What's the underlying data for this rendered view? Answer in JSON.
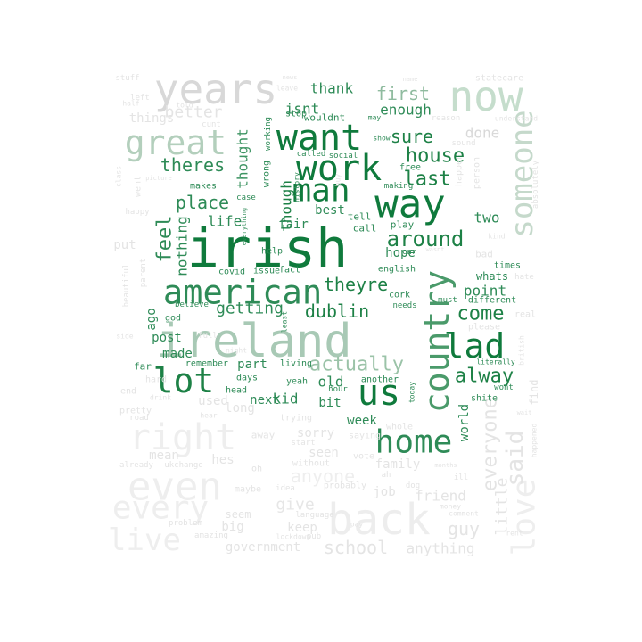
{
  "words": [
    {
      "text": "irish",
      "color": "#0f7a3c"
    },
    {
      "text": "ireland",
      "color": "#a8c9b5"
    },
    {
      "text": "american",
      "color": "#2e8b57"
    },
    {
      "text": "years",
      "color": "#d8d8d8"
    },
    {
      "text": "now",
      "color": "#c5ddcc"
    },
    {
      "text": "want",
      "color": "#0f7a3c"
    },
    {
      "text": "work",
      "color": "#0f7a3c"
    },
    {
      "text": "way",
      "color": "#0f7a3c"
    },
    {
      "text": "man",
      "color": "#0f7a3c"
    },
    {
      "text": "great",
      "color": "#b3cfbc"
    },
    {
      "text": "lot",
      "color": "#1d8146"
    },
    {
      "text": "us",
      "color": "#0f7a3c"
    },
    {
      "text": "lad",
      "color": "#0f7a3c"
    },
    {
      "text": "home",
      "color": "#2e8b57"
    },
    {
      "text": "country",
      "color": "#4a9a6a"
    },
    {
      "text": "someone",
      "color": "#c5d9cb"
    },
    {
      "text": "back",
      "color": "#ededed"
    },
    {
      "text": "even",
      "color": "#eeeeee"
    },
    {
      "text": "right",
      "color": "#eeeeee"
    },
    {
      "text": "every",
      "color": "#eeeeee"
    },
    {
      "text": "live",
      "color": "#eeeeee"
    },
    {
      "text": "love",
      "color": "#eeeeee"
    },
    {
      "text": "said",
      "color": "#e4e4e4"
    },
    {
      "text": "dublin",
      "color": "#1d8146"
    },
    {
      "text": "actually",
      "color": "#9bc3a8"
    },
    {
      "text": "around",
      "color": "#1d8146"
    },
    {
      "text": "place",
      "color": "#2e8b57"
    },
    {
      "text": "feel",
      "color": "#2e8b57"
    },
    {
      "text": "theres",
      "color": "#2e8b57"
    },
    {
      "text": "house",
      "color": "#1d8146"
    },
    {
      "text": "last",
      "color": "#1d8146"
    },
    {
      "text": "sure",
      "color": "#1d8146"
    },
    {
      "text": "first",
      "color": "#8fbb9f"
    },
    {
      "text": "better",
      "color": "#e4e4e4"
    },
    {
      "text": "getting",
      "color": "#2e8b57"
    },
    {
      "text": "theyre",
      "color": "#1d8146"
    },
    {
      "text": "come",
      "color": "#1d8146"
    },
    {
      "text": "alway",
      "color": "#1d8146"
    },
    {
      "text": "everyone",
      "color": "#e4e4e4"
    },
    {
      "text": "anyone",
      "color": "#eeeeee"
    },
    {
      "text": "school",
      "color": "#e4e4e4"
    },
    {
      "text": "give",
      "color": "#e6e6e6"
    },
    {
      "text": "guy",
      "color": "#e4e4e4"
    },
    {
      "text": "little",
      "color": "#e4e4e4"
    },
    {
      "text": "nothing",
      "color": "#2e8b57"
    },
    {
      "text": "thought",
      "color": "#3d9462"
    },
    {
      "text": "life",
      "color": "#2e8b57"
    },
    {
      "text": "though",
      "color": "#1d8146"
    },
    {
      "text": "enough",
      "color": "#2e8b57"
    },
    {
      "text": "done",
      "color": "#d9d9d9"
    },
    {
      "text": "isnt",
      "color": "#2e8b57"
    },
    {
      "text": "thank",
      "color": "#2e8b57"
    },
    {
      "text": "two",
      "color": "#2e8b57"
    },
    {
      "text": "point",
      "color": "#2e8b57"
    },
    {
      "text": "post",
      "color": "#2e8b57"
    },
    {
      "text": "made",
      "color": "#2e8b57"
    },
    {
      "text": "part",
      "color": "#2e8b57"
    },
    {
      "text": "next",
      "color": "#2e8b57"
    },
    {
      "text": "kid",
      "color": "#2e8b57"
    },
    {
      "text": "old",
      "color": "#2e8b57"
    },
    {
      "text": "week",
      "color": "#2e8b57"
    },
    {
      "text": "bit",
      "color": "#2e8b57"
    },
    {
      "text": "family",
      "color": "#e4e4e4"
    },
    {
      "text": "friend",
      "color": "#e4e4e4"
    },
    {
      "text": "sorry",
      "color": "#e4e4e4"
    },
    {
      "text": "used",
      "color": "#e4e4e4"
    },
    {
      "text": "long",
      "color": "#e4e4e4"
    },
    {
      "text": "world",
      "color": "#2e8b57"
    },
    {
      "text": "put",
      "color": "#e4e4e4"
    },
    {
      "text": "things",
      "color": "#e4e4e4"
    },
    {
      "text": "fair",
      "color": "#2e8b57"
    },
    {
      "text": "best",
      "color": "#2e8b57"
    },
    {
      "text": "ago",
      "color": "#2e8b57"
    },
    {
      "text": "anything",
      "color": "#e4e4e4"
    },
    {
      "text": "government",
      "color": "#e4e4e4"
    },
    {
      "text": "keep",
      "color": "#e4e4e4"
    },
    {
      "text": "seen",
      "color": "#e4e4e4"
    },
    {
      "text": "hes",
      "color": "#e4e4e4"
    },
    {
      "text": "mean",
      "color": "#e4e4e4"
    },
    {
      "text": "job",
      "color": "#e4e4e4"
    },
    {
      "text": "big",
      "color": "#e4e4e4"
    },
    {
      "text": "whats",
      "color": "#2e8b57"
    },
    {
      "text": "hope",
      "color": "#2e8b57"
    },
    {
      "text": "stuff",
      "color": "#e4e4e4"
    },
    {
      "text": "left",
      "color": "#e4e4e4"
    },
    {
      "text": "half",
      "color": "#e4e4e4"
    },
    {
      "text": "told",
      "color": "#e4e4e4"
    },
    {
      "text": "cunt",
      "color": "#e4e4e4"
    },
    {
      "text": "news",
      "color": "#e4e4e4"
    },
    {
      "text": "leave",
      "color": "#e4e4e4"
    },
    {
      "text": "name",
      "color": "#e4e4e4"
    },
    {
      "text": "statecare",
      "color": "#e4e4e4"
    },
    {
      "text": "wasnt",
      "color": "#e4e4e4"
    },
    {
      "text": "reason",
      "color": "#e4e4e4"
    },
    {
      "text": "understand",
      "color": "#e4e4e4"
    },
    {
      "text": "stop",
      "color": "#2e8b57"
    },
    {
      "text": "wouldnt",
      "color": "#2e8b57"
    },
    {
      "text": "may",
      "color": "#2e8b57"
    },
    {
      "text": "show",
      "color": "#2e8b57"
    },
    {
      "text": "sound",
      "color": "#e4e4e4"
    },
    {
      "text": "working",
      "color": "#2e8b57"
    },
    {
      "text": "called",
      "color": "#2e8b57"
    },
    {
      "text": "social",
      "color": "#2e8b57"
    },
    {
      "text": "free",
      "color": "#2e8b57"
    },
    {
      "text": "happen",
      "color": "#e4e4e4"
    },
    {
      "text": "person",
      "color": "#e4e4e4"
    },
    {
      "text": "absolutely",
      "color": "#e4e4e4"
    },
    {
      "text": "class",
      "color": "#e4e4e4"
    },
    {
      "text": "picture",
      "color": "#e4e4e4"
    },
    {
      "text": "went",
      "color": "#e4e4e4"
    },
    {
      "text": "makes",
      "color": "#2e8b57"
    },
    {
      "text": "case",
      "color": "#2e8b57"
    },
    {
      "text": "wrong",
      "color": "#2e8b57"
    },
    {
      "text": "history",
      "color": "#2e8b57"
    },
    {
      "text": "making",
      "color": "#2e8b57"
    },
    {
      "text": "happy",
      "color": "#e4e4e4"
    },
    {
      "text": "everything",
      "color": "#2e8b57"
    },
    {
      "text": "buy",
      "color": "#e4e4e4"
    },
    {
      "text": "tell",
      "color": "#2e8b57"
    },
    {
      "text": "call",
      "color": "#2e8b57"
    },
    {
      "text": "play",
      "color": "#2e8b57"
    },
    {
      "text": "kind",
      "color": "#e4e4e4"
    },
    {
      "text": "help",
      "color": "#2e8b57"
    },
    {
      "text": "car",
      "color": "#2e8b57"
    },
    {
      "text": "bad",
      "color": "#e4e4e4"
    },
    {
      "text": "times",
      "color": "#2e8b57"
    },
    {
      "text": "hate",
      "color": "#e4e4e4"
    },
    {
      "text": "parent",
      "color": "#e4e4e4"
    },
    {
      "text": "covid",
      "color": "#2e8b57"
    },
    {
      "text": "issue",
      "color": "#2e8b57"
    },
    {
      "text": "fact",
      "color": "#2e8b57"
    },
    {
      "text": "english",
      "color": "#2e8b57"
    },
    {
      "text": "cork",
      "color": "#2e8b57"
    },
    {
      "text": "beautiful",
      "color": "#e4e4e4"
    },
    {
      "text": "believe",
      "color": "#2e8b57"
    },
    {
      "text": "god",
      "color": "#2e8b57"
    },
    {
      "text": "needs",
      "color": "#2e8b57"
    },
    {
      "text": "must",
      "color": "#2e8b57"
    },
    {
      "text": "different",
      "color": "#2e8b57"
    },
    {
      "text": "real",
      "color": "#e4e4e4"
    },
    {
      "text": "please",
      "color": "#e4e4e4"
    },
    {
      "text": "least",
      "color": "#2e8b57"
    },
    {
      "text": "side",
      "color": "#e4e4e4"
    },
    {
      "text": "full",
      "color": "#e4e4e4"
    },
    {
      "text": "night",
      "color": "#e4e4e4"
    },
    {
      "text": "far",
      "color": "#2e8b57"
    },
    {
      "text": "remember",
      "color": "#2e8b57"
    },
    {
      "text": "living",
      "color": "#2e8b57"
    },
    {
      "text": "british",
      "color": "#e4e4e4"
    },
    {
      "text": "literally",
      "color": "#2e8b57"
    },
    {
      "text": "hard",
      "color": "#e4e4e4"
    },
    {
      "text": "days",
      "color": "#2e8b57"
    },
    {
      "text": "end",
      "color": "#e4e4e4"
    },
    {
      "text": "drink",
      "color": "#e4e4e4"
    },
    {
      "text": "head",
      "color": "#2e8b57"
    },
    {
      "text": "yeah",
      "color": "#2e8b57"
    },
    {
      "text": "hour",
      "color": "#2e8b57"
    },
    {
      "text": "another",
      "color": "#2e8b57"
    },
    {
      "text": "wont",
      "color": "#2e8b57"
    },
    {
      "text": "find",
      "color": "#e4e4e4"
    },
    {
      "text": "today",
      "color": "#2e8b57"
    },
    {
      "text": "shite",
      "color": "#2e8b57"
    },
    {
      "text": "pretty",
      "color": "#e4e4e4"
    },
    {
      "text": "road",
      "color": "#e4e4e4"
    },
    {
      "text": "hear",
      "color": "#e4e4e4"
    },
    {
      "text": "trying",
      "color": "#e4e4e4"
    },
    {
      "text": "start",
      "color": "#e4e4e4"
    },
    {
      "text": "saying",
      "color": "#e4e4e4"
    },
    {
      "text": "whole",
      "color": "#e4e4e4"
    },
    {
      "text": "wait",
      "color": "#e4e4e4"
    },
    {
      "text": "happened",
      "color": "#e4e4e4"
    },
    {
      "text": "already",
      "color": "#e4e4e4"
    },
    {
      "text": "ukchange",
      "color": "#e4e4e4"
    },
    {
      "text": "away",
      "color": "#e4e4e4"
    },
    {
      "text": "oh",
      "color": "#e4e4e4"
    },
    {
      "text": "without",
      "color": "#e4e4e4"
    },
    {
      "text": "vote",
      "color": "#e4e4e4"
    },
    {
      "text": "months",
      "color": "#e4e4e4"
    },
    {
      "text": "ah",
      "color": "#e4e4e4"
    },
    {
      "text": "ill",
      "color": "#e4e4e4"
    },
    {
      "text": "maybe",
      "color": "#e4e4e4"
    },
    {
      "text": "idea",
      "color": "#e4e4e4"
    },
    {
      "text": "probably",
      "color": "#e4e4e4"
    },
    {
      "text": "dog",
      "color": "#e4e4e4"
    },
    {
      "text": "money",
      "color": "#e4e4e4"
    },
    {
      "text": "comment",
      "color": "#e4e4e4"
    },
    {
      "text": "seem",
      "color": "#e4e4e4"
    },
    {
      "text": "problem",
      "color": "#e4e4e4"
    },
    {
      "text": "language",
      "color": "#e4e4e4"
    },
    {
      "text": "pay",
      "color": "#e4e4e4"
    },
    {
      "text": "rent",
      "color": "#e4e4e4"
    },
    {
      "text": "amazing",
      "color": "#e4e4e4"
    },
    {
      "text": "lockdown",
      "color": "#e4e4e4"
    },
    {
      "text": "pub",
      "color": "#e4e4e4"
    }
  ]
}
